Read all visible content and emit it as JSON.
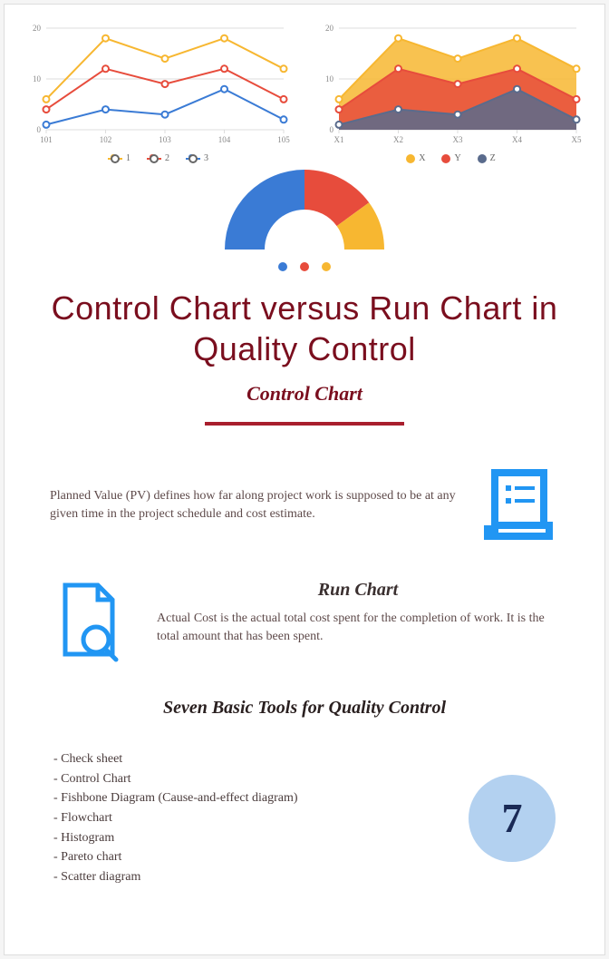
{
  "colors": {
    "series1": "#f7b731",
    "series2": "#e74c3c",
    "series3": "#3a7bd5",
    "grid": "#dddddd",
    "axis_text": "#888888",
    "heading": "#7a0e1e",
    "hr": "#a81e2d",
    "body_text": "#5e4a4a",
    "icon_blue": "#2196f3",
    "big_circle_bg": "#b3d1f0",
    "big_circle_text": "#1a2a56"
  },
  "line_chart": {
    "type": "line",
    "x_labels": [
      "101",
      "102",
      "103",
      "104",
      "105"
    ],
    "ylim": [
      0,
      20
    ],
    "yticks": [
      0,
      10,
      20
    ],
    "series": [
      {
        "name": "1",
        "color": "#f7b731",
        "values": [
          6,
          18,
          14,
          18,
          12
        ]
      },
      {
        "name": "2",
        "color": "#e74c3c",
        "values": [
          4,
          12,
          9,
          12,
          6
        ]
      },
      {
        "name": "3",
        "color": "#3a7bd5",
        "values": [
          1,
          4,
          3,
          8,
          2
        ]
      }
    ],
    "label_fontsize": 9
  },
  "area_chart": {
    "type": "area",
    "x_labels": [
      "X1",
      "X2",
      "X3",
      "X4",
      "X5"
    ],
    "ylim": [
      0,
      20
    ],
    "yticks": [
      0,
      10,
      20
    ],
    "series": [
      {
        "name": "X",
        "color": "#f7b731",
        "values": [
          6,
          18,
          14,
          18,
          12
        ]
      },
      {
        "name": "Y",
        "color": "#e74c3c",
        "values": [
          4,
          12,
          9,
          12,
          6
        ]
      },
      {
        "name": "Z",
        "color": "#5a6b8c",
        "values": [
          1,
          4,
          3,
          8,
          2
        ]
      }
    ],
    "label_fontsize": 9
  },
  "gauge": {
    "type": "donut_half",
    "segments": [
      {
        "color": "#3a7bd5",
        "fraction": 0.5
      },
      {
        "color": "#e74c3c",
        "fraction": 0.3
      },
      {
        "color": "#f7b731",
        "fraction": 0.2
      }
    ]
  },
  "dots": [
    "#3a7bd5",
    "#e74c3c",
    "#f7b731"
  ],
  "title": "Control Chart versus Run Chart in Quality Control",
  "section_control": {
    "heading": "Control Chart",
    "text": "Planned Value (PV) defines how far along project work is supposed to be at any given time in the project schedule and cost estimate."
  },
  "section_run": {
    "heading": "Run Chart",
    "text": "Actual Cost is the actual total cost spent for the completion of work. It is the total amount that has been spent."
  },
  "tools": {
    "heading": "Seven Basic Tools for Quality Control",
    "items": [
      "Check sheet",
      "Control Chart",
      "Fishbone Diagram (Cause-and-effect diagram)",
      "Flowchart",
      "Histogram",
      "Pareto chart",
      "Scatter diagram"
    ],
    "badge_number": "7"
  }
}
